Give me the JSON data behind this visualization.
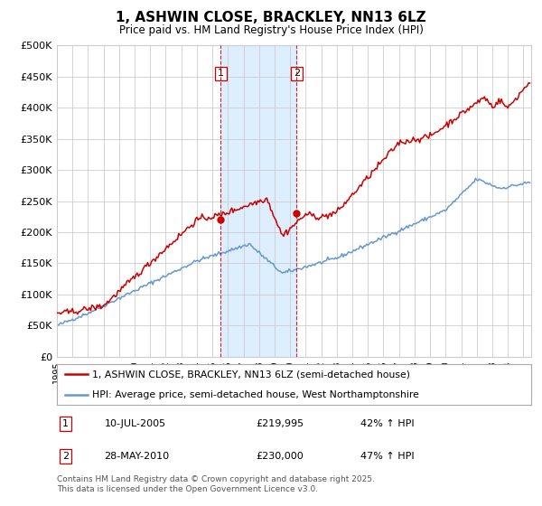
{
  "title": "1, ASHWIN CLOSE, BRACKLEY, NN13 6LZ",
  "subtitle": "Price paid vs. HM Land Registry's House Price Index (HPI)",
  "legend_line1": "1, ASHWIN CLOSE, BRACKLEY, NN13 6LZ (semi-detached house)",
  "legend_line2": "HPI: Average price, semi-detached house, West Northamptonshire",
  "transaction1_date": "10-JUL-2005",
  "transaction1_price": 219995,
  "transaction1_price_str": "£219,995",
  "transaction1_label": "42% ↑ HPI",
  "transaction2_date": "28-MAY-2010",
  "transaction2_price": 230000,
  "transaction2_price_str": "£230,000",
  "transaction2_label": "47% ↑ HPI",
  "copyright": "Contains HM Land Registry data © Crown copyright and database right 2025.\nThis data is licensed under the Open Government Licence v3.0.",
  "red_color": "#cc0000",
  "blue_color": "#6699cc",
  "bg_color": "#ffffff",
  "grid_color": "#cccccc",
  "highlight_color": "#ddeeff",
  "box_color": "#cc0000",
  "ylim": [
    0,
    500000
  ],
  "ytick_vals": [
    0,
    50000,
    100000,
    150000,
    200000,
    250000,
    300000,
    350000,
    400000,
    450000,
    500000
  ],
  "ytick_labels": [
    "£0",
    "£50K",
    "£100K",
    "£150K",
    "£200K",
    "£250K",
    "£300K",
    "£350K",
    "£400K",
    "£450K",
    "£500K"
  ],
  "xmin": 1995,
  "xmax": 2025.5,
  "t1_x": 2005.54,
  "t2_x": 2010.41
}
